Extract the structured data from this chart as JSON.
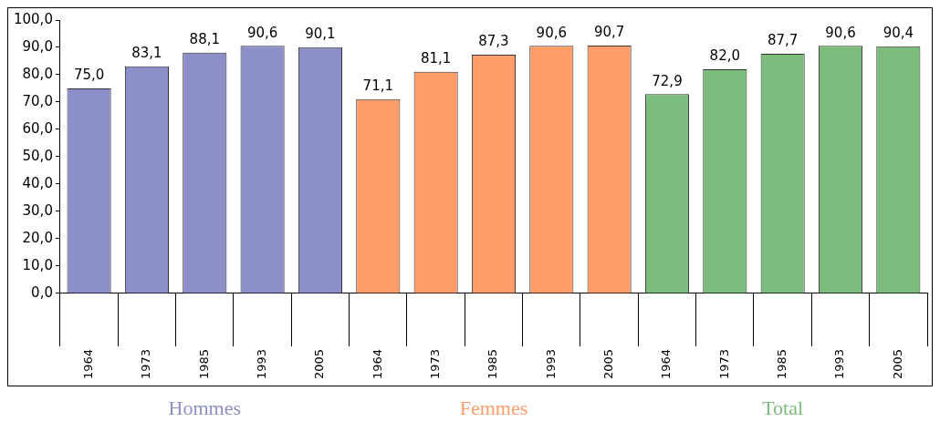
{
  "chart_data": {
    "type": "bar",
    "categories": [
      "1964",
      "1973",
      "1985",
      "1993",
      "2005",
      "1964",
      "1973",
      "1985",
      "1993",
      "2005",
      "1964",
      "1973",
      "1985",
      "1993",
      "2005"
    ],
    "series": [
      {
        "name": "Hommes",
        "color": "#8c8fc8",
        "values": [
          75.0,
          83.1,
          88.1,
          90.6,
          90.1,
          null,
          null,
          null,
          null,
          null,
          null,
          null,
          null,
          null,
          null
        ],
        "value_labels": [
          "75,0",
          "83,1",
          "88,1",
          "90,6",
          "90,1",
          null,
          null,
          null,
          null,
          null,
          null,
          null,
          null,
          null,
          null
        ]
      },
      {
        "name": "Femmes",
        "color": "#ff9e6a",
        "values": [
          null,
          null,
          null,
          null,
          null,
          71.1,
          81.1,
          87.3,
          90.6,
          90.7,
          null,
          null,
          null,
          null,
          null
        ],
        "value_labels": [
          null,
          null,
          null,
          null,
          null,
          "71,1",
          "81,1",
          "87,3",
          "90,6",
          "90,7",
          null,
          null,
          null,
          null,
          null
        ]
      },
      {
        "name": "Total",
        "color": "#7cbc7c",
        "values": [
          null,
          null,
          null,
          null,
          null,
          null,
          null,
          null,
          null,
          null,
          72.9,
          82.0,
          87.7,
          90.6,
          90.4
        ],
        "value_labels": [
          null,
          null,
          null,
          null,
          null,
          null,
          null,
          null,
          null,
          null,
          "72,9",
          "82,0",
          "87,7",
          "90,6",
          "90,4"
        ]
      }
    ],
    "ylim": [
      0,
      100
    ],
    "yticks": [
      {
        "value": 0,
        "label": "0,0"
      },
      {
        "value": 10,
        "label": "10,0"
      },
      {
        "value": 20,
        "label": "20,0"
      },
      {
        "value": 30,
        "label": "30,0"
      },
      {
        "value": 40,
        "label": "40,0"
      },
      {
        "value": 50,
        "label": "50,0"
      },
      {
        "value": 60,
        "label": "60,0"
      },
      {
        "value": 70,
        "label": "70,0"
      },
      {
        "value": 80,
        "label": "80,0"
      },
      {
        "value": 90,
        "label": "90,0"
      },
      {
        "value": 100,
        "label": "100,0"
      }
    ],
    "grid": false,
    "legend": false
  }
}
